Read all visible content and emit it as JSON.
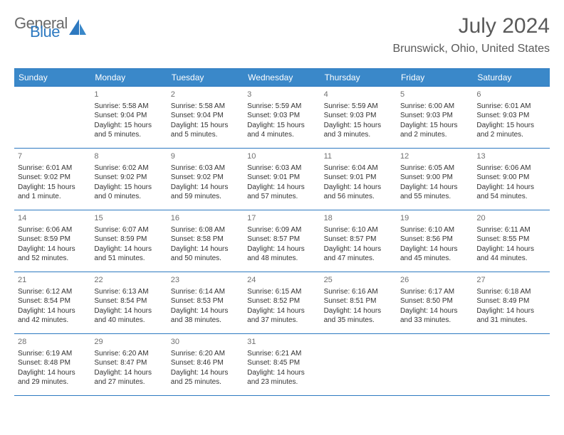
{
  "brand": {
    "part1": "General",
    "part2": "Blue"
  },
  "title": "July 2024",
  "location": "Brunswick, Ohio, United States",
  "colors": {
    "header_bg": "#3a88c9",
    "border": "#2d79c0",
    "text": "#333333",
    "daynum": "#707070",
    "title": "#5a5a5a"
  },
  "weekdays": [
    "Sunday",
    "Monday",
    "Tuesday",
    "Wednesday",
    "Thursday",
    "Friday",
    "Saturday"
  ],
  "weeks": [
    [
      {
        "num": "",
        "sunrise": "",
        "sunset": "",
        "daylight": ""
      },
      {
        "num": "1",
        "sunrise": "Sunrise: 5:58 AM",
        "sunset": "Sunset: 9:04 PM",
        "daylight": "Daylight: 15 hours and 5 minutes."
      },
      {
        "num": "2",
        "sunrise": "Sunrise: 5:58 AM",
        "sunset": "Sunset: 9:04 PM",
        "daylight": "Daylight: 15 hours and 5 minutes."
      },
      {
        "num": "3",
        "sunrise": "Sunrise: 5:59 AM",
        "sunset": "Sunset: 9:03 PM",
        "daylight": "Daylight: 15 hours and 4 minutes."
      },
      {
        "num": "4",
        "sunrise": "Sunrise: 5:59 AM",
        "sunset": "Sunset: 9:03 PM",
        "daylight": "Daylight: 15 hours and 3 minutes."
      },
      {
        "num": "5",
        "sunrise": "Sunrise: 6:00 AM",
        "sunset": "Sunset: 9:03 PM",
        "daylight": "Daylight: 15 hours and 2 minutes."
      },
      {
        "num": "6",
        "sunrise": "Sunrise: 6:01 AM",
        "sunset": "Sunset: 9:03 PM",
        "daylight": "Daylight: 15 hours and 2 minutes."
      }
    ],
    [
      {
        "num": "7",
        "sunrise": "Sunrise: 6:01 AM",
        "sunset": "Sunset: 9:02 PM",
        "daylight": "Daylight: 15 hours and 1 minute."
      },
      {
        "num": "8",
        "sunrise": "Sunrise: 6:02 AM",
        "sunset": "Sunset: 9:02 PM",
        "daylight": "Daylight: 15 hours and 0 minutes."
      },
      {
        "num": "9",
        "sunrise": "Sunrise: 6:03 AM",
        "sunset": "Sunset: 9:02 PM",
        "daylight": "Daylight: 14 hours and 59 minutes."
      },
      {
        "num": "10",
        "sunrise": "Sunrise: 6:03 AM",
        "sunset": "Sunset: 9:01 PM",
        "daylight": "Daylight: 14 hours and 57 minutes."
      },
      {
        "num": "11",
        "sunrise": "Sunrise: 6:04 AM",
        "sunset": "Sunset: 9:01 PM",
        "daylight": "Daylight: 14 hours and 56 minutes."
      },
      {
        "num": "12",
        "sunrise": "Sunrise: 6:05 AM",
        "sunset": "Sunset: 9:00 PM",
        "daylight": "Daylight: 14 hours and 55 minutes."
      },
      {
        "num": "13",
        "sunrise": "Sunrise: 6:06 AM",
        "sunset": "Sunset: 9:00 PM",
        "daylight": "Daylight: 14 hours and 54 minutes."
      }
    ],
    [
      {
        "num": "14",
        "sunrise": "Sunrise: 6:06 AM",
        "sunset": "Sunset: 8:59 PM",
        "daylight": "Daylight: 14 hours and 52 minutes."
      },
      {
        "num": "15",
        "sunrise": "Sunrise: 6:07 AM",
        "sunset": "Sunset: 8:59 PM",
        "daylight": "Daylight: 14 hours and 51 minutes."
      },
      {
        "num": "16",
        "sunrise": "Sunrise: 6:08 AM",
        "sunset": "Sunset: 8:58 PM",
        "daylight": "Daylight: 14 hours and 50 minutes."
      },
      {
        "num": "17",
        "sunrise": "Sunrise: 6:09 AM",
        "sunset": "Sunset: 8:57 PM",
        "daylight": "Daylight: 14 hours and 48 minutes."
      },
      {
        "num": "18",
        "sunrise": "Sunrise: 6:10 AM",
        "sunset": "Sunset: 8:57 PM",
        "daylight": "Daylight: 14 hours and 47 minutes."
      },
      {
        "num": "19",
        "sunrise": "Sunrise: 6:10 AM",
        "sunset": "Sunset: 8:56 PM",
        "daylight": "Daylight: 14 hours and 45 minutes."
      },
      {
        "num": "20",
        "sunrise": "Sunrise: 6:11 AM",
        "sunset": "Sunset: 8:55 PM",
        "daylight": "Daylight: 14 hours and 44 minutes."
      }
    ],
    [
      {
        "num": "21",
        "sunrise": "Sunrise: 6:12 AM",
        "sunset": "Sunset: 8:54 PM",
        "daylight": "Daylight: 14 hours and 42 minutes."
      },
      {
        "num": "22",
        "sunrise": "Sunrise: 6:13 AM",
        "sunset": "Sunset: 8:54 PM",
        "daylight": "Daylight: 14 hours and 40 minutes."
      },
      {
        "num": "23",
        "sunrise": "Sunrise: 6:14 AM",
        "sunset": "Sunset: 8:53 PM",
        "daylight": "Daylight: 14 hours and 38 minutes."
      },
      {
        "num": "24",
        "sunrise": "Sunrise: 6:15 AM",
        "sunset": "Sunset: 8:52 PM",
        "daylight": "Daylight: 14 hours and 37 minutes."
      },
      {
        "num": "25",
        "sunrise": "Sunrise: 6:16 AM",
        "sunset": "Sunset: 8:51 PM",
        "daylight": "Daylight: 14 hours and 35 minutes."
      },
      {
        "num": "26",
        "sunrise": "Sunrise: 6:17 AM",
        "sunset": "Sunset: 8:50 PM",
        "daylight": "Daylight: 14 hours and 33 minutes."
      },
      {
        "num": "27",
        "sunrise": "Sunrise: 6:18 AM",
        "sunset": "Sunset: 8:49 PM",
        "daylight": "Daylight: 14 hours and 31 minutes."
      }
    ],
    [
      {
        "num": "28",
        "sunrise": "Sunrise: 6:19 AM",
        "sunset": "Sunset: 8:48 PM",
        "daylight": "Daylight: 14 hours and 29 minutes."
      },
      {
        "num": "29",
        "sunrise": "Sunrise: 6:20 AM",
        "sunset": "Sunset: 8:47 PM",
        "daylight": "Daylight: 14 hours and 27 minutes."
      },
      {
        "num": "30",
        "sunrise": "Sunrise: 6:20 AM",
        "sunset": "Sunset: 8:46 PM",
        "daylight": "Daylight: 14 hours and 25 minutes."
      },
      {
        "num": "31",
        "sunrise": "Sunrise: 6:21 AM",
        "sunset": "Sunset: 8:45 PM",
        "daylight": "Daylight: 14 hours and 23 minutes."
      },
      {
        "num": "",
        "sunrise": "",
        "sunset": "",
        "daylight": ""
      },
      {
        "num": "",
        "sunrise": "",
        "sunset": "",
        "daylight": ""
      },
      {
        "num": "",
        "sunrise": "",
        "sunset": "",
        "daylight": ""
      }
    ]
  ]
}
